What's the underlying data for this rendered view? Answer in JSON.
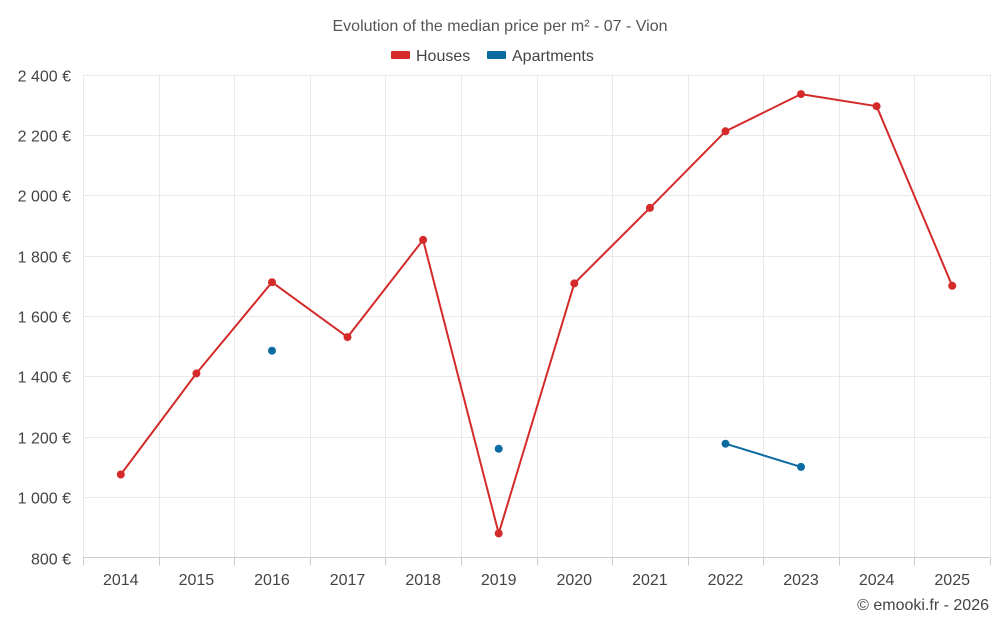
{
  "chart_data": {
    "type": "line",
    "title": "Evolution of the median price per m² - 07 - Vion",
    "categories": [
      "2014",
      "2015",
      "2016",
      "2017",
      "2018",
      "2019",
      "2020",
      "2021",
      "2022",
      "2023",
      "2024",
      "2025"
    ],
    "ylim": [
      800,
      2400
    ],
    "y_ticks": [
      800,
      1000,
      1200,
      1400,
      1600,
      1800,
      2000,
      2200,
      2400
    ],
    "y_tick_labels": [
      "800 €",
      "1 000 €",
      "1 200 €",
      "1 400 €",
      "1 600 €",
      "1 800 €",
      "2 000 €",
      "2 200 €",
      "2 400 €"
    ],
    "grid": true,
    "legend_position": "top-center",
    "series": [
      {
        "name": "Houses",
        "color": "#d42a2a",
        "values": [
          1075,
          1410,
          1712,
          1530,
          1852,
          880,
          1708,
          1958,
          2212,
          2335,
          2295,
          1700
        ]
      },
      {
        "name": "Apartments",
        "color": "#0c6ba1",
        "values": [
          null,
          null,
          1485,
          null,
          null,
          1160,
          null,
          null,
          1177,
          1100,
          null,
          null
        ]
      }
    ]
  },
  "credit": "© emooki.fr - 2026"
}
